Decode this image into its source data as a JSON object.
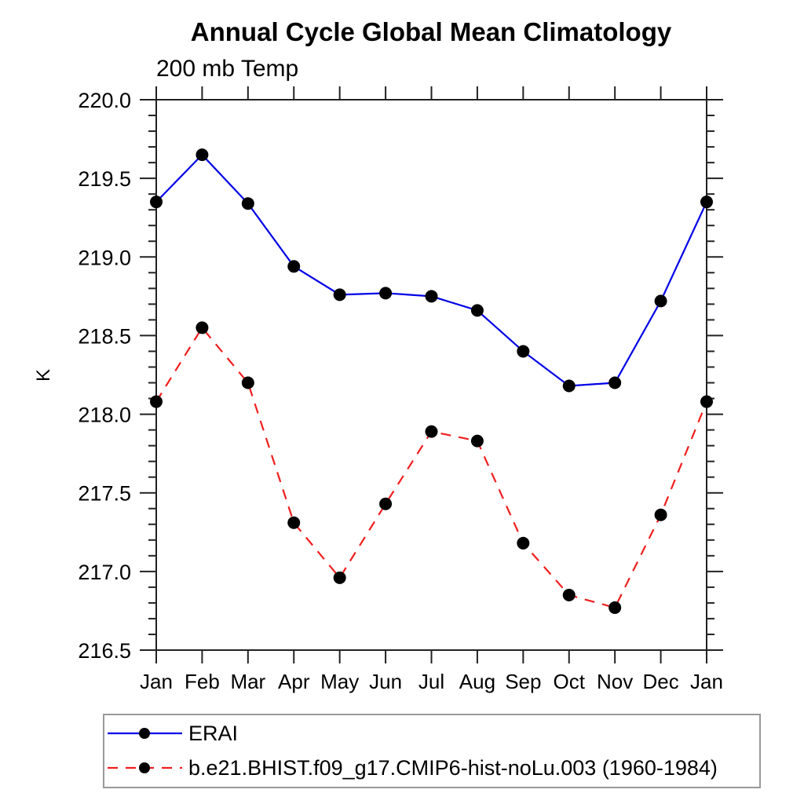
{
  "chart_data": {
    "type": "line",
    "title": "Annual Cycle Global Mean Climatology",
    "subtitle": "200 mb Temp",
    "ylabel": "K",
    "categories": [
      "Jan",
      "Feb",
      "Mar",
      "Apr",
      "May",
      "Jun",
      "Jul",
      "Aug",
      "Sep",
      "Oct",
      "Nov",
      "Dec",
      "Jan"
    ],
    "ylim": [
      216.5,
      220.0
    ],
    "ytick_labels": [
      "216.5",
      "217.0",
      "217.5",
      "218.0",
      "218.5",
      "219.0",
      "219.5",
      "220.0"
    ],
    "ytick_step": 0.5,
    "ytick_minor_step": 0.1,
    "grid": false,
    "legend_position": "bottom-left",
    "series": [
      {
        "name": "ERAI",
        "color": "#0000e6",
        "line_style": "solid",
        "marker": "filled-circle",
        "marker_color": "#000000",
        "values": [
          219.35,
          219.65,
          219.34,
          218.94,
          218.76,
          218.77,
          218.75,
          218.66,
          218.4,
          218.18,
          218.2,
          218.72,
          219.35
        ]
      },
      {
        "name": "b.e21.BHIST.f09_g17.CMIP6-hist-noLu.003 (1960-1984)",
        "color": "#f01e1e",
        "line_style": "dashed",
        "marker": "filled-circle",
        "marker_color": "#000000",
        "values": [
          218.08,
          218.55,
          218.2,
          217.31,
          216.96,
          217.43,
          217.89,
          217.83,
          217.18,
          216.85,
          216.77,
          217.36,
          218.08
        ]
      }
    ]
  }
}
